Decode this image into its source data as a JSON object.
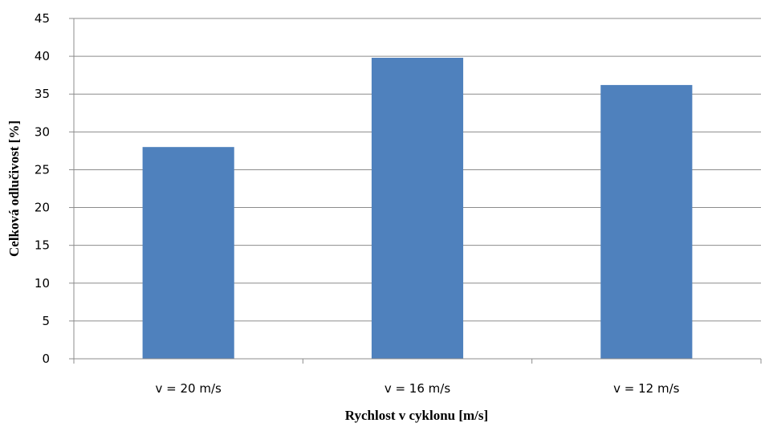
{
  "chart_data": {
    "type": "bar",
    "title": "",
    "xlabel": "Rychlost v cyklonu [m/s]",
    "ylabel": "Celková odlučivost [%]",
    "categories": [
      "v = 20 m/s",
      "v = 16 m/s",
      "v = 12 m/s"
    ],
    "values": [
      28,
      39.8,
      36.2
    ],
    "ylim": [
      0,
      45
    ],
    "yticks": [
      "0",
      "5",
      "10",
      "15",
      "20",
      "25",
      "30",
      "35",
      "40",
      "45"
    ],
    "grid": true,
    "legend": "none",
    "bar_color": "#4f81bd"
  }
}
